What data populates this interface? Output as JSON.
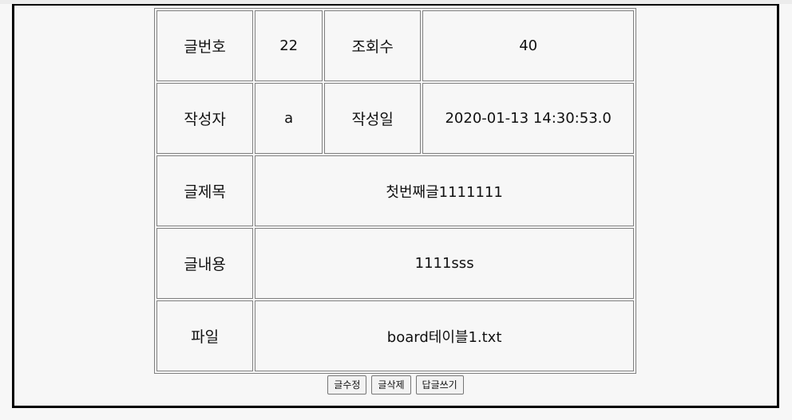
{
  "post": {
    "no_label": "글번호",
    "no_value": "22",
    "views_label": "조회수",
    "views_value": "40",
    "author_label": "작성자",
    "author_value": "a",
    "date_label": "작성일",
    "date_value": "2020-01-13 14:30:53.0",
    "title_label": "글제목",
    "title_value": "첫번째글1111111",
    "content_label": "글내용",
    "content_value": "1111sss",
    "file_label": "파일",
    "file_value": "board테이블1.txt"
  },
  "actions": {
    "edit_label": "글수정",
    "delete_label": "글삭제",
    "reply_label": "답글쓰기"
  }
}
